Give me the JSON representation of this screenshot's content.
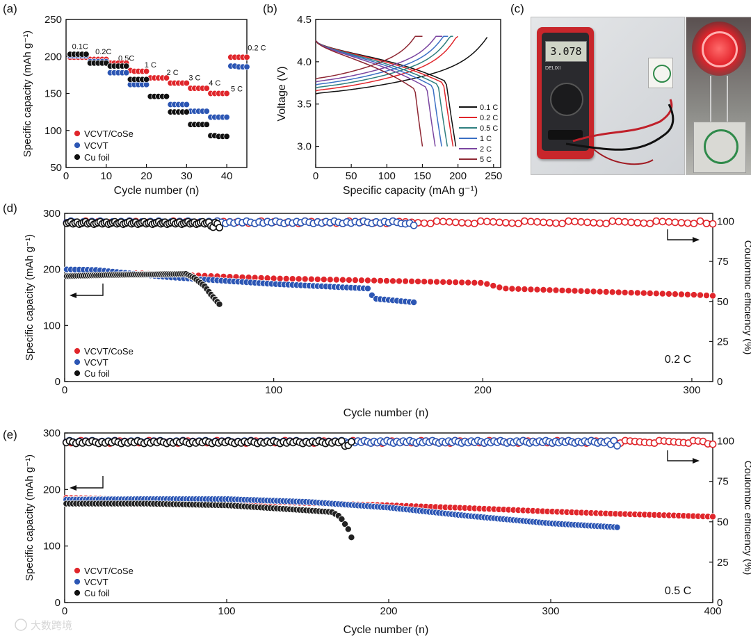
{
  "colors": {
    "red": "#e0262b",
    "blue": "#2c56b4",
    "black": "#111111",
    "gray": "#7f7f7f"
  },
  "watermark": "大数跨境",
  "chart_data": [
    {
      "id": "a",
      "panel_label": "(a)",
      "type": "scatter",
      "xlabel": "Cycle number (n)",
      "ylabel": "Specific capacity (mAh g⁻¹)",
      "xlim": [
        0,
        45
      ],
      "ylim": [
        50,
        250
      ],
      "xticks": [
        0,
        10,
        20,
        30,
        40
      ],
      "yticks": [
        50,
        100,
        150,
        200,
        250
      ],
      "rate_labels": [
        {
          "text": "0.1C",
          "x": 3.5,
          "y": 210
        },
        {
          "text": "0.2C",
          "x": 9.3,
          "y": 203
        },
        {
          "text": "0.5C",
          "x": 15,
          "y": 194
        },
        {
          "text": "1 C",
          "x": 21,
          "y": 185
        },
        {
          "text": "2 C",
          "x": 26.5,
          "y": 175
        },
        {
          "text": "3 C",
          "x": 32,
          "y": 168
        },
        {
          "text": "4 C",
          "x": 37,
          "y": 161
        },
        {
          "text": "5 C",
          "x": 42.5,
          "y": 153
        },
        {
          "text": "0.2 C",
          "x": 47.5,
          "y": 208
        }
      ],
      "series": [
        {
          "name": "VCVT/CoSe",
          "color": "red",
          "x": [
            1,
            2,
            3,
            4,
            5,
            6,
            7,
            8,
            9,
            10,
            11,
            12,
            13,
            14,
            15,
            16,
            17,
            18,
            19,
            20,
            21,
            22,
            23,
            24,
            25,
            26,
            27,
            28,
            29,
            30,
            31,
            32,
            33,
            34,
            35,
            36,
            37,
            38,
            39,
            40,
            41,
            42,
            43,
            44,
            45
          ],
          "values": [
            199,
            199,
            199,
            199,
            199,
            196,
            196,
            196,
            196,
            196,
            191,
            191,
            191,
            191,
            191,
            181,
            180,
            180,
            180,
            180,
            171,
            171,
            171,
            171,
            171,
            164,
            164,
            164,
            164,
            164,
            157,
            157,
            157,
            157,
            157,
            150,
            150,
            150,
            150,
            150,
            199,
            199,
            199,
            199,
            199
          ]
        },
        {
          "name": "VCVT",
          "color": "blue",
          "x": [
            1,
            2,
            3,
            4,
            5,
            6,
            7,
            8,
            9,
            10,
            11,
            12,
            13,
            14,
            15,
            16,
            17,
            18,
            19,
            20,
            21,
            22,
            23,
            24,
            25,
            26,
            27,
            28,
            29,
            30,
            31,
            32,
            33,
            34,
            35,
            36,
            37,
            38,
            39,
            40,
            41,
            42,
            43,
            44,
            45
          ],
          "values": [
            201,
            201,
            201,
            201,
            201,
            193,
            193,
            193,
            193,
            193,
            178,
            178,
            178,
            178,
            178,
            162,
            162,
            162,
            162,
            162,
            146,
            146,
            146,
            146,
            146,
            135,
            135,
            135,
            135,
            135,
            126,
            126,
            126,
            126,
            126,
            118,
            118,
            118,
            118,
            118,
            187,
            187,
            186,
            186,
            186
          ]
        },
        {
          "name": "Cu foil",
          "color": "black",
          "x": [
            1,
            2,
            3,
            4,
            5,
            6,
            7,
            8,
            9,
            10,
            11,
            12,
            13,
            14,
            15,
            16,
            17,
            18,
            19,
            20,
            21,
            22,
            23,
            24,
            25,
            26,
            27,
            28,
            29,
            30,
            31,
            32,
            33,
            34,
            35,
            36,
            37,
            38,
            39,
            40
          ],
          "values": [
            203,
            203,
            203,
            203,
            203,
            191,
            191,
            191,
            191,
            191,
            187,
            187,
            187,
            187,
            187,
            169,
            169,
            169,
            169,
            169,
            146,
            146,
            146,
            146,
            146,
            125,
            125,
            125,
            125,
            125,
            108,
            108,
            108,
            108,
            108,
            93,
            93,
            92,
            92,
            92
          ]
        }
      ],
      "legend": [
        "VCVT/CoSe",
        "VCVT",
        "Cu foil"
      ]
    },
    {
      "id": "b",
      "panel_label": "(b)",
      "type": "line",
      "xlabel": "Specific capacity (mAh g⁻¹)",
      "ylabel": "Voltage (V)",
      "xlim": [
        0,
        260
      ],
      "ylim": [
        2.75,
        4.5
      ],
      "xticks": [
        0,
        50,
        100,
        150,
        200,
        250
      ],
      "yticks": [
        3.0,
        3.5,
        4.0,
        4.5
      ],
      "series": [
        {
          "name": "0.1 C",
          "color": "#111111",
          "capacity": 241,
          "discharge": 197
        },
        {
          "name": "0.2 C",
          "color": "#e0262b",
          "capacity": 200,
          "discharge": 193
        },
        {
          "name": "0.5 C",
          "color": "#2e7f7f",
          "capacity": 193,
          "discharge": 185
        },
        {
          "name": "1 C",
          "color": "#3b6fc4",
          "capacity": 186,
          "discharge": 177
        },
        {
          "name": "2 C",
          "color": "#7a45a0",
          "capacity": 178,
          "discharge": 168
        },
        {
          "name": "5 C",
          "color": "#8e2733",
          "capacity": 150,
          "discharge": 150
        }
      ]
    },
    {
      "id": "d",
      "panel_label": "(d)",
      "type": "scatter",
      "xlabel": "Cycle number (n)",
      "ylabel": "Specific capacity (mAh g⁻¹)",
      "ylabel_right": "Coulombic efficiency (%)",
      "xlim": [
        0,
        310
      ],
      "ylim": [
        0,
        300
      ],
      "ylim_right": [
        0,
        105
      ],
      "xticks": [
        0,
        100,
        200,
        300
      ],
      "yticks": [
        0,
        100,
        200,
        300
      ],
      "yticks_right": [
        0,
        25,
        50,
        75,
        100
      ],
      "rate": "0.2 C",
      "capacity": {
        "VCVT/CoSe": {
          "x": [
            1,
            20,
            50,
            100,
            150,
            200,
            210,
            250,
            300,
            310
          ],
          "y": [
            200,
            195,
            191,
            184,
            180,
            176,
            166,
            161,
            155,
            153
          ]
        },
        "VCVT": {
          "x": [
            1,
            15,
            50,
            100,
            145,
            148,
            168
          ],
          "y": [
            200,
            199,
            186,
            174,
            166,
            148,
            141
          ]
        },
        "Cu foil": {
          "x": [
            1,
            20,
            58,
            62,
            67,
            70,
            74
          ],
          "y": [
            188,
            190,
            192,
            185,
            170,
            155,
            138
          ]
        }
      },
      "ce": {
        "VCVT/CoSe": {
          "x": [
            1,
            310
          ],
          "y": 99.4
        },
        "VCVT": {
          "x": [
            1,
            168
          ],
          "y": 99.4
        },
        "Cu foil": {
          "x": [
            1,
            74
          ],
          "y": 99.0
        }
      },
      "legend": [
        "VCVT/CoSe",
        "VCVT",
        "Cu foil"
      ]
    },
    {
      "id": "e",
      "panel_label": "(e)",
      "type": "scatter",
      "xlabel": "Cycle number (n)",
      "ylabel": "Specific capacity (mAh g⁻¹)",
      "ylabel_right": "Coulombic efficiency (%)",
      "xlim": [
        0,
        400
      ],
      "ylim": [
        0,
        300
      ],
      "ylim_right": [
        0,
        105
      ],
      "xticks": [
        0,
        100,
        200,
        300,
        400
      ],
      "yticks": [
        0,
        100,
        200,
        300
      ],
      "yticks_right": [
        0,
        25,
        50,
        75,
        100
      ],
      "rate": "0.5 C",
      "capacity": {
        "VCVT/CoSe": {
          "x": [
            1,
            50,
            100,
            150,
            200,
            250,
            300,
            340,
            400
          ],
          "y": [
            185,
            182,
            180,
            176,
            172,
            167,
            161,
            157,
            152
          ]
        },
        "VCVT": {
          "x": [
            1,
            50,
            100,
            150,
            200,
            250,
            300,
            342
          ],
          "y": [
            182,
            183,
            183,
            178,
            168,
            153,
            140,
            133
          ]
        },
        "Cu foil": {
          "x": [
            1,
            50,
            100,
            150,
            165,
            170,
            175,
            178
          ],
          "y": [
            175,
            175,
            172,
            163,
            160,
            152,
            130,
            108
          ]
        }
      },
      "ce": {
        "VCVT/CoSe": {
          "x": [
            1,
            400
          ],
          "y": 99.5
        },
        "VCVT": {
          "x": [
            1,
            342
          ],
          "y": 99.5
        },
        "Cu foil": {
          "x": [
            1,
            178
          ],
          "y": 99.3
        }
      },
      "legend": [
        "VCVT/CoSe",
        "VCVT",
        "Cu foil"
      ]
    }
  ],
  "photo_c": {
    "panel_label": "(c)",
    "meter_display": "3.078",
    "meter_brand": "DELIXI",
    "subject": "multimeter measuring pouch cell voltage; cell powering red LED"
  }
}
